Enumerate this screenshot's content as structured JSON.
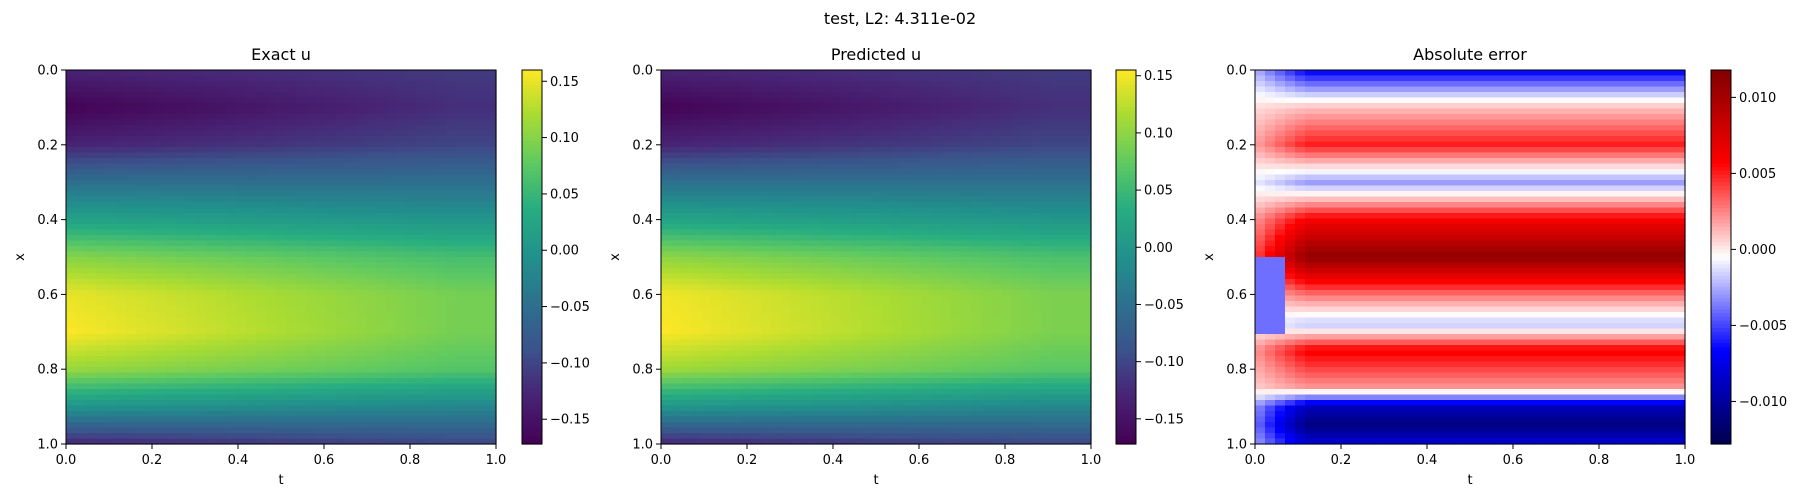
{
  "suptitle": "test, L2: 4.311e-02",
  "chart_data": [
    {
      "type": "heatmap",
      "title": "Exact u",
      "xlabel": "t",
      "ylabel": "x",
      "xlim": [
        0,
        1
      ],
      "ylim": [
        1,
        0
      ],
      "xticks": [
        "0.0",
        "0.2",
        "0.4",
        "0.6",
        "0.8",
        "1.0"
      ],
      "yticks": [
        "0.0",
        "0.2",
        "0.4",
        "0.6",
        "0.8",
        "1.0"
      ],
      "colormap": "viridis",
      "colorbar": {
        "range": [
          -0.172,
          0.16
        ],
        "ticks": [
          "0.15",
          "0.10",
          "0.05",
          "0.00",
          "−0.05",
          "−0.10",
          "−0.15"
        ]
      },
      "profile_x": [
        0.0,
        0.1,
        0.2,
        0.3,
        0.4,
        0.5,
        0.6,
        0.7,
        0.8,
        0.9,
        1.0
      ],
      "profile_u_t0": [
        -0.13,
        -0.17,
        -0.13,
        -0.05,
        0.02,
        0.1,
        0.15,
        0.16,
        0.11,
        0.0,
        -0.13
      ],
      "profile_u_t1": [
        -0.11,
        -0.12,
        -0.1,
        -0.05,
        0.0,
        0.06,
        0.09,
        0.09,
        0.07,
        -0.02,
        -0.1
      ]
    },
    {
      "type": "heatmap",
      "title": "Predicted u",
      "xlabel": "t",
      "ylabel": "x",
      "xlim": [
        0,
        1
      ],
      "ylim": [
        1,
        0
      ],
      "xticks": [
        "0.0",
        "0.2",
        "0.4",
        "0.6",
        "0.8",
        "1.0"
      ],
      "yticks": [
        "0.0",
        "0.2",
        "0.4",
        "0.6",
        "0.8",
        "1.0"
      ],
      "colormap": "viridis",
      "colorbar": {
        "range": [
          -0.172,
          0.155
        ],
        "ticks": [
          "0.15",
          "0.10",
          "0.05",
          "0.00",
          "−0.05",
          "−0.10",
          "−0.15"
        ]
      },
      "profile_x": [
        0.0,
        0.1,
        0.2,
        0.3,
        0.4,
        0.5,
        0.6,
        0.7,
        0.8,
        0.9,
        1.0
      ],
      "profile_u_t0": [
        -0.13,
        -0.17,
        -0.13,
        -0.05,
        0.02,
        0.1,
        0.15,
        0.155,
        0.11,
        0.0,
        -0.13
      ],
      "profile_u_t1": [
        -0.11,
        -0.12,
        -0.1,
        -0.05,
        0.0,
        0.06,
        0.09,
        0.09,
        0.07,
        -0.02,
        -0.1
      ]
    },
    {
      "type": "heatmap",
      "title": "Absolute error",
      "xlabel": "t",
      "ylabel": "x",
      "xlim": [
        0,
        1
      ],
      "ylim": [
        1,
        0
      ],
      "xticks": [
        "0.0",
        "0.2",
        "0.4",
        "0.6",
        "0.8",
        "1.0"
      ],
      "yticks": [
        "0.0",
        "0.2",
        "0.4",
        "0.6",
        "0.8",
        "1.0"
      ],
      "colormap": "seismic",
      "colorbar": {
        "range": [
          -0.0128,
          0.0118
        ],
        "ticks": [
          "0.010",
          "0.005",
          "0.000",
          "−0.005",
          "−0.010"
        ]
      },
      "profile_x": [
        0.0,
        0.05,
        0.1,
        0.2,
        0.3,
        0.4,
        0.5,
        0.6,
        0.68,
        0.75,
        0.85,
        0.9,
        0.95,
        1.0
      ],
      "profile_err_t1": [
        -0.007,
        -0.003,
        0.001,
        0.005,
        -0.003,
        0.006,
        0.011,
        0.003,
        -0.002,
        0.006,
        0.002,
        -0.009,
        -0.011,
        -0.008
      ]
    }
  ],
  "colors": {
    "frame": "#000000",
    "background": "#ffffff"
  }
}
